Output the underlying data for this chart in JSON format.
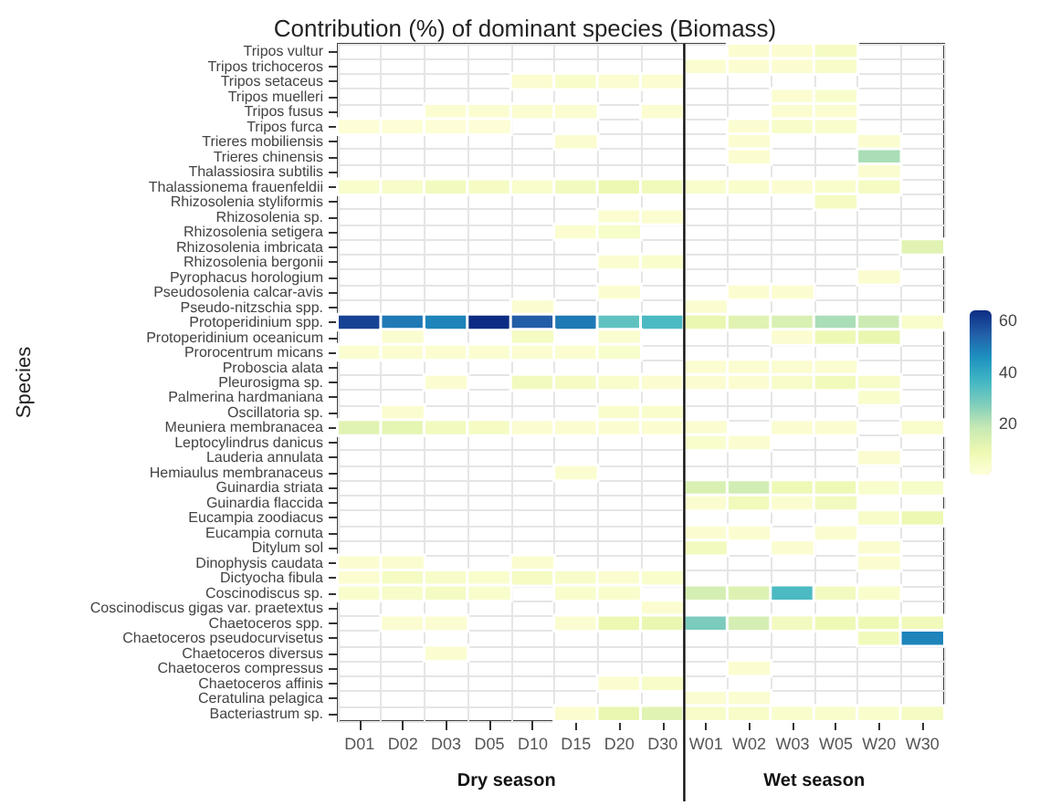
{
  "chart_data": {
    "type": "heatmap",
    "title": "Contribution (%) of dominant species (Biomass)",
    "ylabel": "Species",
    "categories": [
      "D01",
      "D02",
      "D03",
      "D05",
      "D10",
      "D15",
      "D20",
      "D30",
      "W01",
      "W02",
      "W03",
      "W05",
      "W20",
      "W30"
    ],
    "y_categories": [
      "Tripos vultur",
      "Tripos trichoceros",
      "Tripos setaceus",
      "Tripos muelleri",
      "Tripos fusus",
      "Tripos furca",
      "Trieres mobiliensis",
      "Trieres chinensis",
      "Thalassiosira subtilis",
      "Thalassionema frauenfeldii",
      "Rhizosolenia styliformis",
      "Rhizosolenia sp.",
      "Rhizosolenia setigera",
      "Rhizosolenia imbricata",
      "Rhizosolenia bergonii",
      "Pyrophacus horologium",
      "Pseudosolenia calcar-avis",
      "Pseudo-nitzschia spp.",
      "Protoperidinium spp.",
      "Protoperidinium oceanicum",
      "Prorocentrum micans",
      "Proboscia alata",
      "Pleurosigma sp.",
      "Palmerina hardmaniana",
      "Oscillatoria sp.",
      "Meuniera membranacea",
      "Leptocylindrus danicus",
      "Lauderia annulata",
      "Hemiaulus membranaceus",
      "Guinardia striata",
      "Guinardia flaccida",
      "Eucampia zoodiacus",
      "Eucampia cornuta",
      "Ditylum sol",
      "Dinophysis caudata",
      "Dictyocha fibula",
      "Coscinodiscus sp.",
      "Coscinodiscus gigas var. praetextus",
      "Chaetoceros spp.",
      "Chaetoceros pseudocurvisetus",
      "Chaetoceros diversus",
      "Chaetoceros compressus",
      "Chaetoceros affinis",
      "Ceratulina pelagica",
      "Bacteriastrum sp."
    ],
    "cells": [
      [
        null,
        null,
        null,
        null,
        null,
        null,
        null,
        null,
        null,
        2,
        2,
        5,
        null,
        null
      ],
      [
        null,
        null,
        null,
        null,
        null,
        null,
        null,
        null,
        2,
        2,
        2,
        4,
        null,
        null
      ],
      [
        null,
        null,
        null,
        null,
        2,
        4,
        2,
        2,
        null,
        null,
        null,
        null,
        null,
        null
      ],
      [
        null,
        null,
        null,
        null,
        null,
        null,
        null,
        null,
        null,
        null,
        2,
        3,
        null,
        null
      ],
      [
        null,
        null,
        2,
        2,
        2,
        2,
        null,
        2,
        null,
        null,
        2,
        2,
        null,
        null
      ],
      [
        1,
        1,
        1,
        1,
        null,
        null,
        null,
        null,
        null,
        2,
        4,
        3,
        null,
        null
      ],
      [
        null,
        null,
        null,
        null,
        null,
        2,
        null,
        null,
        null,
        2,
        null,
        null,
        2,
        null
      ],
      [
        null,
        null,
        null,
        null,
        null,
        null,
        null,
        null,
        null,
        2,
        null,
        null,
        22,
        null
      ],
      [
        null,
        null,
        null,
        null,
        null,
        null,
        null,
        null,
        null,
        null,
        null,
        null,
        2,
        null
      ],
      [
        3,
        4,
        6,
        5,
        3,
        6,
        9,
        7,
        3,
        3,
        2,
        3,
        5,
        null
      ],
      [
        null,
        null,
        null,
        null,
        null,
        null,
        null,
        null,
        null,
        null,
        null,
        5,
        null,
        null
      ],
      [
        null,
        null,
        null,
        null,
        null,
        null,
        2,
        2,
        null,
        null,
        null,
        null,
        null,
        null
      ],
      [
        null,
        null,
        null,
        null,
        null,
        2,
        4,
        null,
        null,
        null,
        null,
        null,
        null,
        null
      ],
      [
        null,
        null,
        null,
        null,
        null,
        null,
        null,
        null,
        null,
        null,
        null,
        null,
        null,
        12
      ],
      [
        null,
        null,
        null,
        null,
        null,
        null,
        2,
        3,
        null,
        null,
        null,
        null,
        null,
        null
      ],
      [
        null,
        null,
        null,
        null,
        null,
        null,
        null,
        null,
        null,
        null,
        null,
        null,
        2,
        null
      ],
      [
        null,
        null,
        null,
        null,
        null,
        null,
        2,
        null,
        null,
        2,
        2,
        null,
        null,
        null
      ],
      [
        null,
        null,
        null,
        null,
        2,
        null,
        null,
        null,
        2,
        null,
        null,
        null,
        null,
        null
      ],
      [
        60,
        50,
        48,
        64,
        55,
        50,
        32,
        35,
        10,
        12,
        14,
        22,
        17,
        3
      ],
      [
        null,
        2,
        null,
        null,
        5,
        null,
        2,
        null,
        null,
        null,
        2,
        8,
        10,
        null
      ],
      [
        2,
        2,
        2,
        2,
        2,
        2,
        3,
        null,
        null,
        null,
        null,
        null,
        null,
        null
      ],
      [
        null,
        null,
        null,
        null,
        null,
        null,
        null,
        null,
        2,
        2,
        2,
        2,
        null,
        null
      ],
      [
        null,
        null,
        2,
        null,
        6,
        5,
        3,
        2,
        2,
        2,
        4,
        7,
        4,
        null
      ],
      [
        null,
        null,
        null,
        null,
        null,
        null,
        null,
        null,
        null,
        null,
        null,
        null,
        3,
        null
      ],
      [
        null,
        2,
        null,
        null,
        null,
        null,
        3,
        3,
        null,
        null,
        null,
        null,
        null,
        null
      ],
      [
        12,
        11,
        6,
        5,
        2,
        2,
        2,
        2,
        2,
        null,
        2,
        2,
        null,
        3
      ],
      [
        null,
        null,
        null,
        null,
        null,
        null,
        null,
        null,
        3,
        2,
        null,
        null,
        null,
        null
      ],
      [
        null,
        null,
        null,
        null,
        null,
        null,
        null,
        null,
        null,
        null,
        null,
        null,
        2,
        null
      ],
      [
        null,
        null,
        null,
        null,
        null,
        2,
        null,
        null,
        null,
        null,
        null,
        null,
        null,
        null
      ],
      [
        null,
        null,
        null,
        null,
        null,
        null,
        null,
        null,
        14,
        16,
        8,
        8,
        3,
        4
      ],
      [
        null,
        null,
        null,
        null,
        null,
        null,
        null,
        null,
        2,
        7,
        2,
        6,
        null,
        null
      ],
      [
        null,
        null,
        null,
        null,
        null,
        null,
        null,
        null,
        null,
        null,
        null,
        null,
        4,
        9
      ],
      [
        null,
        null,
        null,
        null,
        null,
        null,
        null,
        null,
        2,
        2,
        null,
        2,
        null,
        null
      ],
      [
        null,
        null,
        null,
        null,
        null,
        null,
        null,
        null,
        6,
        null,
        2,
        null,
        2,
        null
      ],
      [
        2,
        2,
        null,
        null,
        2,
        null,
        null,
        null,
        null,
        null,
        null,
        null,
        2,
        null
      ],
      [
        2,
        5,
        4,
        3,
        5,
        4,
        2,
        3,
        null,
        null,
        null,
        null,
        null,
        null
      ],
      [
        3,
        4,
        5,
        3,
        null,
        3,
        3,
        null,
        15,
        13,
        35,
        6,
        3,
        null
      ],
      [
        null,
        null,
        null,
        null,
        null,
        null,
        null,
        2,
        null,
        null,
        null,
        null,
        null,
        null
      ],
      [
        null,
        2,
        2,
        null,
        null,
        2,
        9,
        10,
        28,
        15,
        6,
        8,
        8,
        7
      ],
      [
        null,
        null,
        null,
        null,
        null,
        null,
        null,
        null,
        null,
        null,
        null,
        null,
        7,
        48
      ],
      [
        null,
        null,
        2,
        null,
        null,
        null,
        null,
        null,
        null,
        null,
        null,
        null,
        null,
        null
      ],
      [
        null,
        null,
        null,
        null,
        null,
        null,
        null,
        null,
        null,
        2,
        null,
        null,
        null,
        null
      ],
      [
        null,
        null,
        null,
        null,
        null,
        null,
        2,
        4,
        null,
        null,
        null,
        null,
        null,
        null
      ],
      [
        null,
        null,
        null,
        null,
        null,
        null,
        null,
        null,
        2,
        2,
        null,
        null,
        null,
        null
      ],
      [
        null,
        null,
        null,
        null,
        null,
        2,
        10,
        12,
        4,
        4,
        3,
        3,
        3,
        5
      ]
    ],
    "clim": [
      0,
      64
    ],
    "cticks": [
      20,
      40,
      60
    ],
    "grid": true,
    "ref_lines": [
      {
        "axis": "x",
        "value": "W01"
      }
    ],
    "annotations": [
      "Dry season",
      "Wet season"
    ]
  }
}
